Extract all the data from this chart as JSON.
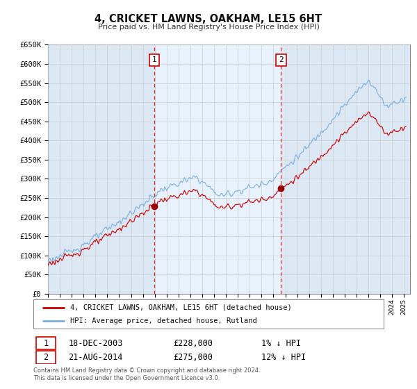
{
  "title": "4, CRICKET LAWNS, OAKHAM, LE15 6HT",
  "subtitle": "Price paid vs. HM Land Registry's House Price Index (HPI)",
  "ylim": [
    0,
    650000
  ],
  "yticks": [
    0,
    50000,
    100000,
    150000,
    200000,
    250000,
    300000,
    350000,
    400000,
    450000,
    500000,
    550000,
    600000,
    650000
  ],
  "ytick_labels": [
    "£0",
    "£50K",
    "£100K",
    "£150K",
    "£200K",
    "£250K",
    "£300K",
    "£350K",
    "£400K",
    "£450K",
    "£500K",
    "£550K",
    "£600K",
    "£650K"
  ],
  "x_start_year": 1995,
  "x_end_year": 2025,
  "grid_color": "#cccccc",
  "plot_bg_color": "#dde8f5",
  "shade_color": "#ddeeff",
  "red_line_color": "#cc0000",
  "blue_line_color": "#7aaddd",
  "marker1_date_decimal": 2003.96,
  "marker1_value": 228000,
  "marker1_label": "1",
  "marker2_date_decimal": 2014.64,
  "marker2_value": 275000,
  "marker2_label": "2",
  "vline_color": "#dd2222",
  "legend_line1": "4, CRICKET LAWNS, OAKHAM, LE15 6HT (detached house)",
  "legend_line2": "HPI: Average price, detached house, Rutland",
  "annotation1_date": "18-DEC-2003",
  "annotation1_price": "£228,000",
  "annotation1_hpi": "1% ↓ HPI",
  "annotation2_date": "21-AUG-2014",
  "annotation2_price": "£275,000",
  "annotation2_hpi": "12% ↓ HPI",
  "footer": "Contains HM Land Registry data © Crown copyright and database right 2024.\nThis data is licensed under the Open Government Licence v3.0."
}
